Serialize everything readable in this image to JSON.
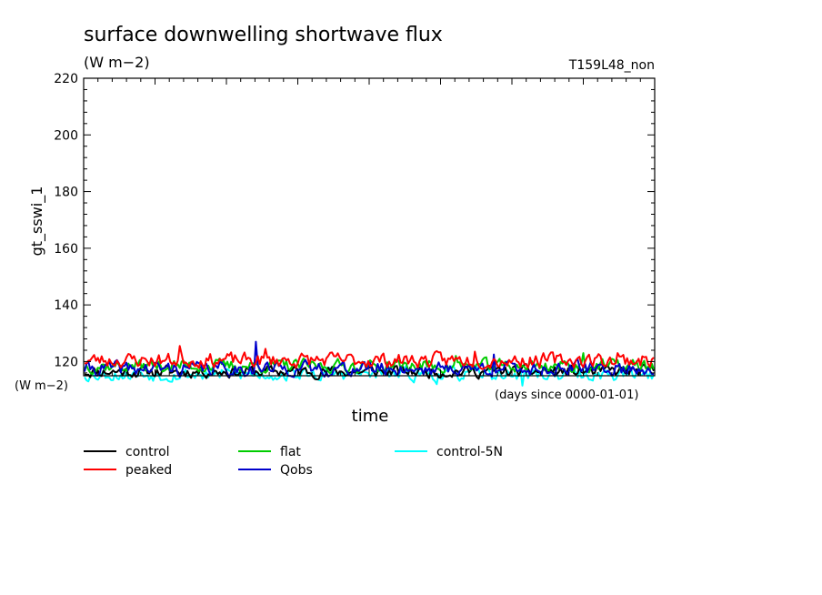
{
  "chart_data": {
    "type": "line",
    "title": "surface downwelling shortwave flux",
    "subtitle": "(W m−2)",
    "run_label": "T159L48_non",
    "ylabel": "gt_sswi_1",
    "xlabel": "time",
    "y_unit_label": "(W m−2)",
    "x_unit_label": "(days since 0000-01-01)",
    "ylim": [
      115,
      220
    ],
    "y_ticks": [
      "120",
      "140",
      "160",
      "180",
      "200",
      "220"
    ],
    "grid": false,
    "legend_position": "bottom",
    "n_points": 300,
    "series": [
      {
        "name": "control",
        "color": "#000000",
        "mean": 116.5,
        "amp": 1.8,
        "seed": 11,
        "spikes": []
      },
      {
        "name": "peaked",
        "color": "#ff0000",
        "mean": 120.5,
        "amp": 2.2,
        "seed": 23,
        "spikes": [
          [
            50,
            125.5
          ],
          [
            95,
            124.5
          ],
          [
            205,
            123.5
          ],
          [
            280,
            123.0
          ]
        ]
      },
      {
        "name": "flat",
        "color": "#00cc00",
        "mean": 118.5,
        "amp": 2.0,
        "seed": 37,
        "spikes": [
          [
            195,
            122.0
          ],
          [
            262,
            123.0
          ]
        ]
      },
      {
        "name": "Qobs",
        "color": "#0000cc",
        "mean": 117.5,
        "amp": 2.2,
        "seed": 41,
        "spikes": [
          [
            90,
            127.0
          ],
          [
            215,
            122.5
          ]
        ]
      },
      {
        "name": "control-5N",
        "color": "#00ffff",
        "mean": 115.5,
        "amp": 2.0,
        "seed": 53,
        "spikes": [
          [
            185,
            112.0
          ],
          [
            230,
            111.5
          ]
        ]
      }
    ]
  }
}
